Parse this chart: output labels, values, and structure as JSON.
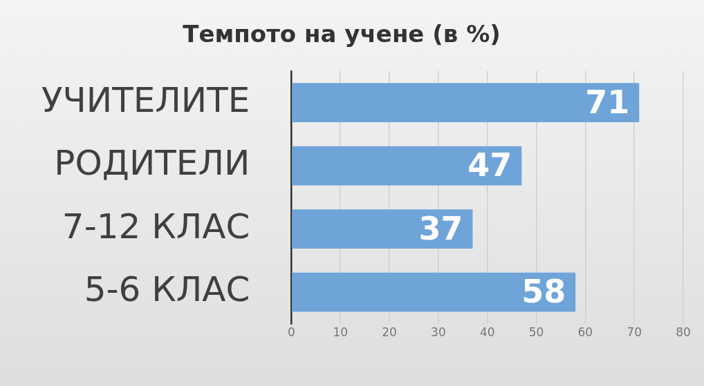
{
  "chart_data": {
    "type": "bar",
    "orientation": "horizontal",
    "title": "Темпото на учене (в %)",
    "categories": [
      "УЧИТЕЛИТЕ",
      "РОДИТЕЛИ",
      "7-12 КЛАС",
      "5-6 КЛАС"
    ],
    "values": [
      71,
      47,
      37,
      58
    ],
    "color": "#6fa4d9",
    "xlim": [
      0,
      80
    ],
    "xticks": [
      0,
      10,
      20,
      30,
      40,
      50,
      60,
      70,
      80
    ],
    "grid": "x",
    "legend": false,
    "data_labels": true
  }
}
